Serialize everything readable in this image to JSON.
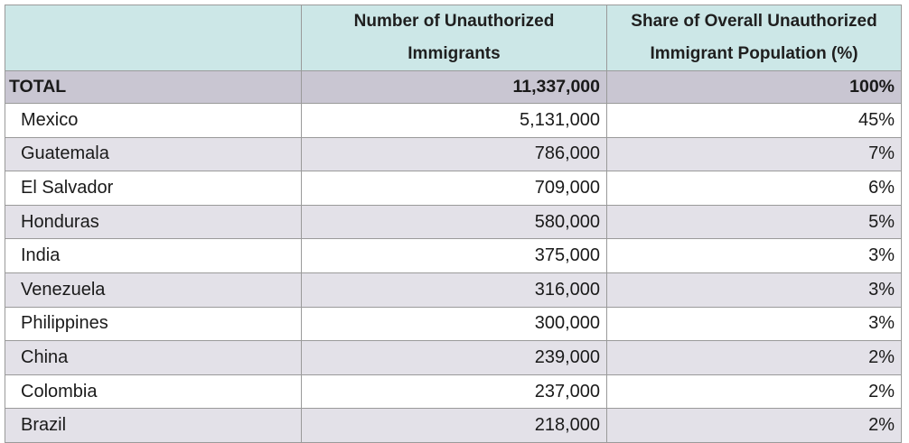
{
  "chart_data": {
    "type": "table",
    "columns": [
      "",
      "Number of Unauthorized Immigrants",
      "Share of Overall Unauthorized Immigrant Population (%)"
    ],
    "header": {
      "number_line1": "Number of Unauthorized",
      "number_line2": "Immigrants",
      "share_line1": "Share of Overall Unauthorized",
      "share_line2": "Immigrant Population (%)"
    },
    "total": {
      "label": "TOTAL",
      "number": "11,337,000",
      "share": "100%"
    },
    "rows": [
      {
        "country": "Mexico",
        "number": "5,131,000",
        "share": "45%"
      },
      {
        "country": "Guatemala",
        "number": "786,000",
        "share": "7%"
      },
      {
        "country": "El Salvador",
        "number": "709,000",
        "share": "6%"
      },
      {
        "country": "Honduras",
        "number": "580,000",
        "share": "5%"
      },
      {
        "country": "India",
        "number": "375,000",
        "share": "3%"
      },
      {
        "country": "Venezuela",
        "number": "316,000",
        "share": "3%"
      },
      {
        "country": "Philippines",
        "number": "300,000",
        "share": "3%"
      },
      {
        "country": "China",
        "number": "239,000",
        "share": "2%"
      },
      {
        "country": "Colombia",
        "number": "237,000",
        "share": "2%"
      },
      {
        "country": "Brazil",
        "number": "218,000",
        "share": "2%"
      }
    ],
    "colors": {
      "header_bg": "#cce7e7",
      "total_bg": "#c9c6d2",
      "alt_row_bg": "#e3e1e8",
      "row_bg": "#ffffff",
      "border": "#9a9a9a"
    }
  }
}
